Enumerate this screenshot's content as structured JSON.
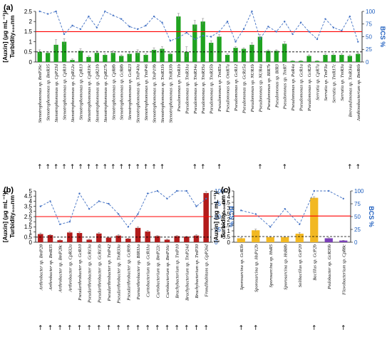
{
  "figure": {
    "arrow_symbol": "↑",
    "colors": {
      "bar_a": "#1fa31f",
      "bar_b": "#b31b1b",
      "bar_c_main": "#f2b822",
      "bar_c_purple": "#7a3fb8",
      "bcs_line": "#4472c4",
      "threshold_red": "#ff0000",
      "threshold_black": "#000000"
    }
  },
  "chart_data": [
    {
      "panel": "(a)",
      "type": "bar",
      "ylabel_lines": [
        "[Auxin] (μg mL⁻¹)/",
        "Turbidity₆₀₀nm"
      ],
      "y2label": "BCS %",
      "ylim": [
        0,
        2.5
      ],
      "yticks": [
        "0",
        "0.5",
        "1",
        "1.5",
        "2",
        "2.5"
      ],
      "y2lim": [
        0,
        100
      ],
      "y2ticks": [
        "0",
        "25",
        "50",
        "75",
        "100"
      ],
      "red_line": 1.5,
      "dashed_line": 0.5,
      "categories": [
        "Stenotrophomonas sp. BmP26c",
        "Stenotrophomonas sp. BmR35",
        "Stenotrophomonas sp. CpP23d",
        "Stenotrophomonas sp. CpR10",
        "Stenotrophomonas sp. CpR12a",
        "Stenotrophomonas sp. CpR13",
        "Stenotrophomonas sp. CpR19c",
        "Stenotrophomonas sp. CpR21b",
        "Stenotrophomonas sp. CpR27b",
        "Stenotrophomonas sp. CpR8b",
        "Stenotrophomonas sp. GcR8b",
        "Stenotrophomonas sp. GcR23",
        "Stenotrophomonas sp. TmP40a",
        "Stenotrophomonas sp. TmP46",
        "Stenotrophomonas sp. TmP19b",
        "Stenotrophomonas sp. TmR31b",
        "Stenotrophomonas sp. TmR33b",
        "Pseudomonas sp. TmR1b",
        "Pseudomonas sp. TmR31a",
        "Pseudomonas sp. TmR34a",
        "Pseudomonas sp. TmR35a",
        "Pseudomonas sp. TmR35b",
        "Pseudomonas sp. TmR5a",
        "Pseudomonas sp. OmR7a",
        "Pseudomonas sp. GcR12",
        "Pseudomonas sp. GcR15a",
        "Pseudomonas sp. NUR1b",
        "Pseudomonas sp. NUR4a",
        "Pseudomonas sp. BIR7b",
        "Pseudomonas sp. BIR3",
        "Pseudomonas sp. TmR7",
        "Pseudomonas sp. PaR4a",
        "Pseudomonas sp. GcR1a",
        "Pseudomonas sp. GcR2b",
        "Serratia sp. CpR7a",
        "Serratia sp. TmP3a",
        "Serratia sp. TmR17c",
        "Serratia sp. TmR3a",
        "Brevundimonas sp. TmR34a",
        "Janthinobacterium sp. BmR6b"
      ],
      "values": [
        0.5,
        0.45,
        0.85,
        1.0,
        0.1,
        0.55,
        0.25,
        0.45,
        0.35,
        0.45,
        0.3,
        0.4,
        0.45,
        0.35,
        0.6,
        0.65,
        0.4,
        2.25,
        0.5,
        1.85,
        2.0,
        0.95,
        1.25,
        0.35,
        0.7,
        0.65,
        0.85,
        1.25,
        0.55,
        0.55,
        0.9,
        0.05,
        0.05,
        0.3,
        0.05,
        0.35,
        0.35,
        0.35,
        0.3,
        0.4
      ],
      "errors": [
        0.1,
        0.05,
        0.25,
        0.15,
        0.05,
        0.1,
        0.05,
        0.1,
        0.05,
        0.1,
        0.05,
        0.1,
        0.15,
        0.05,
        0.1,
        0.1,
        0.05,
        0.15,
        0.25,
        0.2,
        0.15,
        0.1,
        0.1,
        0.05,
        0.05,
        0.05,
        0.1,
        0.1,
        0.05,
        0.05,
        0.1,
        0.02,
        0.02,
        0.05,
        0.02,
        0.05,
        0.05,
        0.05,
        0.05,
        0.05
      ],
      "bcs": [
        100,
        95,
        100,
        55,
        72,
        65,
        90,
        68,
        100,
        92,
        85,
        70,
        65,
        72,
        90,
        78,
        42,
        48,
        58,
        45,
        52,
        50,
        60,
        80,
        40,
        65,
        100,
        45,
        70,
        60,
        80,
        55,
        78,
        60,
        45,
        85,
        68,
        62,
        90,
        40
      ],
      "arrows": [
        true,
        true,
        true,
        true,
        true,
        true,
        true,
        true,
        true,
        true,
        true,
        true,
        true,
        true,
        true,
        true,
        false,
        false,
        false,
        true,
        true,
        false,
        true,
        false,
        false,
        false,
        false,
        true,
        false,
        false,
        true,
        false,
        false,
        false,
        false,
        false,
        false,
        false,
        true,
        true
      ]
    },
    {
      "panel": "(b)",
      "type": "bar",
      "ylabel_lines": [
        "[Auxin] (μg mL⁻¹)/",
        "Turbidity₆₀₀nm"
      ],
      "y2label": "BCS %",
      "ylim": [
        0,
        5
      ],
      "yticks": [
        "0",
        "0.5",
        "1",
        "1.5",
        "2",
        "2.5",
        "3",
        "3.5",
        "4",
        "4.5",
        "5"
      ],
      "y2lim": [
        0,
        100
      ],
      "y2ticks": [
        "0",
        "25",
        "50",
        "75",
        "100"
      ],
      "red_line": 2.5,
      "dashed_line": 0.5,
      "categories": [
        "Arthrobacter sp. BmP28",
        "Arthrobacter sp. BmR35",
        "Arthrobacter sp. BmP28c",
        "Arthrobacter sp. CpR32a",
        "Pseudarthrobacter sp. GcR10",
        "Pseudarthrobacter sp. GcR13a",
        "Pseudarthrobacter sp. GcR13b",
        "Pseudarthrobacter sp. TmP42",
        "Pseudarthrobacter sp. TmR33a",
        "Pseudarthrobacter sp. GcR9b",
        "Paenarthrobacter sp. BIR11a",
        "Curtobacterium sp. GcR11a",
        "Curtobacterium sp. BmP22c",
        "Curtobacterium sp. BmP16c",
        "Brachybacterium sp. TmP10",
        "Brachybacterium sp. TmP24d",
        "Brachybacterium sp. TmP30",
        "Frondihabitans sp. GpP26d"
      ],
      "values": [
        0.8,
        0.7,
        0.2,
        0.95,
        0.9,
        0.25,
        0.85,
        0.45,
        0.65,
        0.35,
        1.4,
        1.05,
        0.6,
        0.25,
        0.6,
        0.55,
        0.65,
        4.8
      ],
      "errors": [
        0.1,
        0.05,
        0.05,
        0.1,
        0.1,
        0.05,
        0.1,
        0.05,
        0.1,
        0.05,
        0.1,
        0.1,
        0.05,
        0.05,
        0.05,
        0.05,
        0.1,
        0.15
      ],
      "bcs": [
        70,
        80,
        35,
        40,
        95,
        65,
        80,
        75,
        55,
        30,
        55,
        95,
        100,
        85,
        100,
        100,
        70,
        85
      ],
      "arrows": [
        true,
        true,
        true,
        true,
        true,
        true,
        true,
        true,
        true,
        true,
        true,
        true,
        true,
        true,
        true,
        true,
        true,
        true
      ]
    },
    {
      "panel": "(c)",
      "type": "bar",
      "ylabel_lines": [
        "[Auxin] (μg mL⁻¹)/",
        "Turbidity₆₀₀nm"
      ],
      "y2label": "BCS %",
      "ylim": [
        0,
        4.5
      ],
      "yticks": [
        "0",
        "0.5",
        "1",
        "1.5",
        "2",
        "2.5",
        "3",
        "3.5",
        "4",
        "4.5"
      ],
      "y2lim": [
        0,
        100
      ],
      "y2ticks": [
        "0",
        "25",
        "50",
        "75",
        "100"
      ],
      "red_line": 2.3,
      "dashed_line": 0.5,
      "categories": [
        "Sporosarcina sp. GcR3b",
        "Sporosarcina sp. HsP12b",
        "Sporosarcina sp. HsR5",
        "Sporosarcina sp. HsR8b",
        "Solibacillus sp. GcP20",
        "Bacillus sp. GcP2b",
        "Pedobacter sp. GcR39b",
        "Flavobacterium sp. CpR8c"
      ],
      "values": [
        0.35,
        1.05,
        0.45,
        0.45,
        0.75,
        3.9,
        0.35,
        0.15
      ],
      "errors": [
        0.05,
        0.1,
        0.05,
        0.05,
        0.1,
        0.1,
        0.05,
        0.02
      ],
      "bar_colors": [
        "#f2b822",
        "#f2b822",
        "#f2b822",
        "#f2b822",
        "#f2b822",
        "#f2b822",
        "#7a3fb8",
        "#7a3fb8"
      ],
      "bcs": [
        62,
        55,
        30,
        65,
        35,
        100,
        100,
        85
      ],
      "arrows": [
        true,
        true,
        false,
        false,
        false,
        true,
        false,
        true
      ]
    }
  ]
}
